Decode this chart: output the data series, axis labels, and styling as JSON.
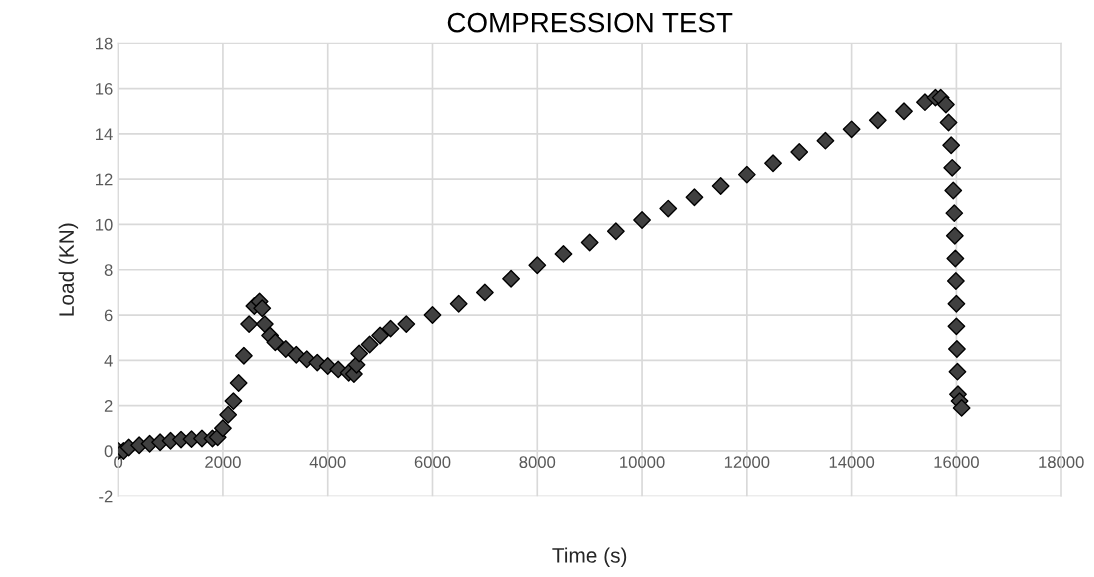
{
  "chart_data": {
    "type": "scatter",
    "title": "COMPRESSION TEST",
    "xlabel": "Time (s)",
    "ylabel": "Load (KN)",
    "x": [
      0,
      100,
      200,
      400,
      600,
      800,
      1000,
      1200,
      1400,
      1600,
      1800,
      1900,
      2000,
      2100,
      2200,
      2300,
      2400,
      2500,
      2600,
      2700,
      2750,
      2800,
      2900,
      3000,
      3200,
      3400,
      3600,
      3800,
      4000,
      4200,
      4400,
      4500,
      4550,
      4600,
      4800,
      5000,
      5200,
      5500,
      6000,
      6500,
      7000,
      7500,
      8000,
      8500,
      9000,
      9500,
      10000,
      10500,
      11000,
      11500,
      12000,
      12500,
      13000,
      13500,
      14000,
      14500,
      15000,
      15400,
      15600,
      15700,
      15800,
      15850,
      15900,
      15920,
      15940,
      15960,
      15970,
      15980,
      15990,
      16000,
      16000,
      16010,
      16020,
      16030,
      16060,
      16100
    ],
    "series": [
      {
        "color": "#404040",
        "values": [
          0,
          0,
          0.15,
          0.25,
          0.32,
          0.38,
          0.45,
          0.5,
          0.52,
          0.55,
          0.55,
          0.6,
          1.0,
          1.6,
          2.2,
          3.0,
          4.2,
          5.6,
          6.4,
          6.6,
          6.3,
          5.6,
          5.1,
          4.8,
          4.5,
          4.25,
          4.05,
          3.9,
          3.75,
          3.6,
          3.45,
          3.4,
          3.8,
          4.3,
          4.7,
          5.1,
          5.4,
          5.6,
          6.0,
          6.5,
          7.0,
          7.6,
          8.2,
          8.7,
          9.2,
          9.7,
          10.2,
          10.7,
          11.2,
          11.7,
          12.2,
          12.7,
          13.2,
          13.7,
          14.2,
          14.6,
          15.0,
          15.4,
          15.6,
          15.6,
          15.3,
          14.5,
          13.5,
          12.5,
          11.5,
          10.5,
          9.5,
          8.5,
          7.5,
          6.5,
          5.5,
          4.5,
          3.5,
          2.5,
          2.2,
          1.9
        ]
      }
    ],
    "marker": "diamond",
    "grid": true,
    "xlim": [
      0,
      18000
    ],
    "xticks": [
      0,
      2000,
      4000,
      6000,
      8000,
      10000,
      12000,
      14000,
      16000,
      18000
    ],
    "ylim": [
      -2,
      18
    ],
    "yticks": [
      -2,
      0,
      2,
      4,
      6,
      8,
      10,
      12,
      14,
      16,
      18
    ]
  }
}
